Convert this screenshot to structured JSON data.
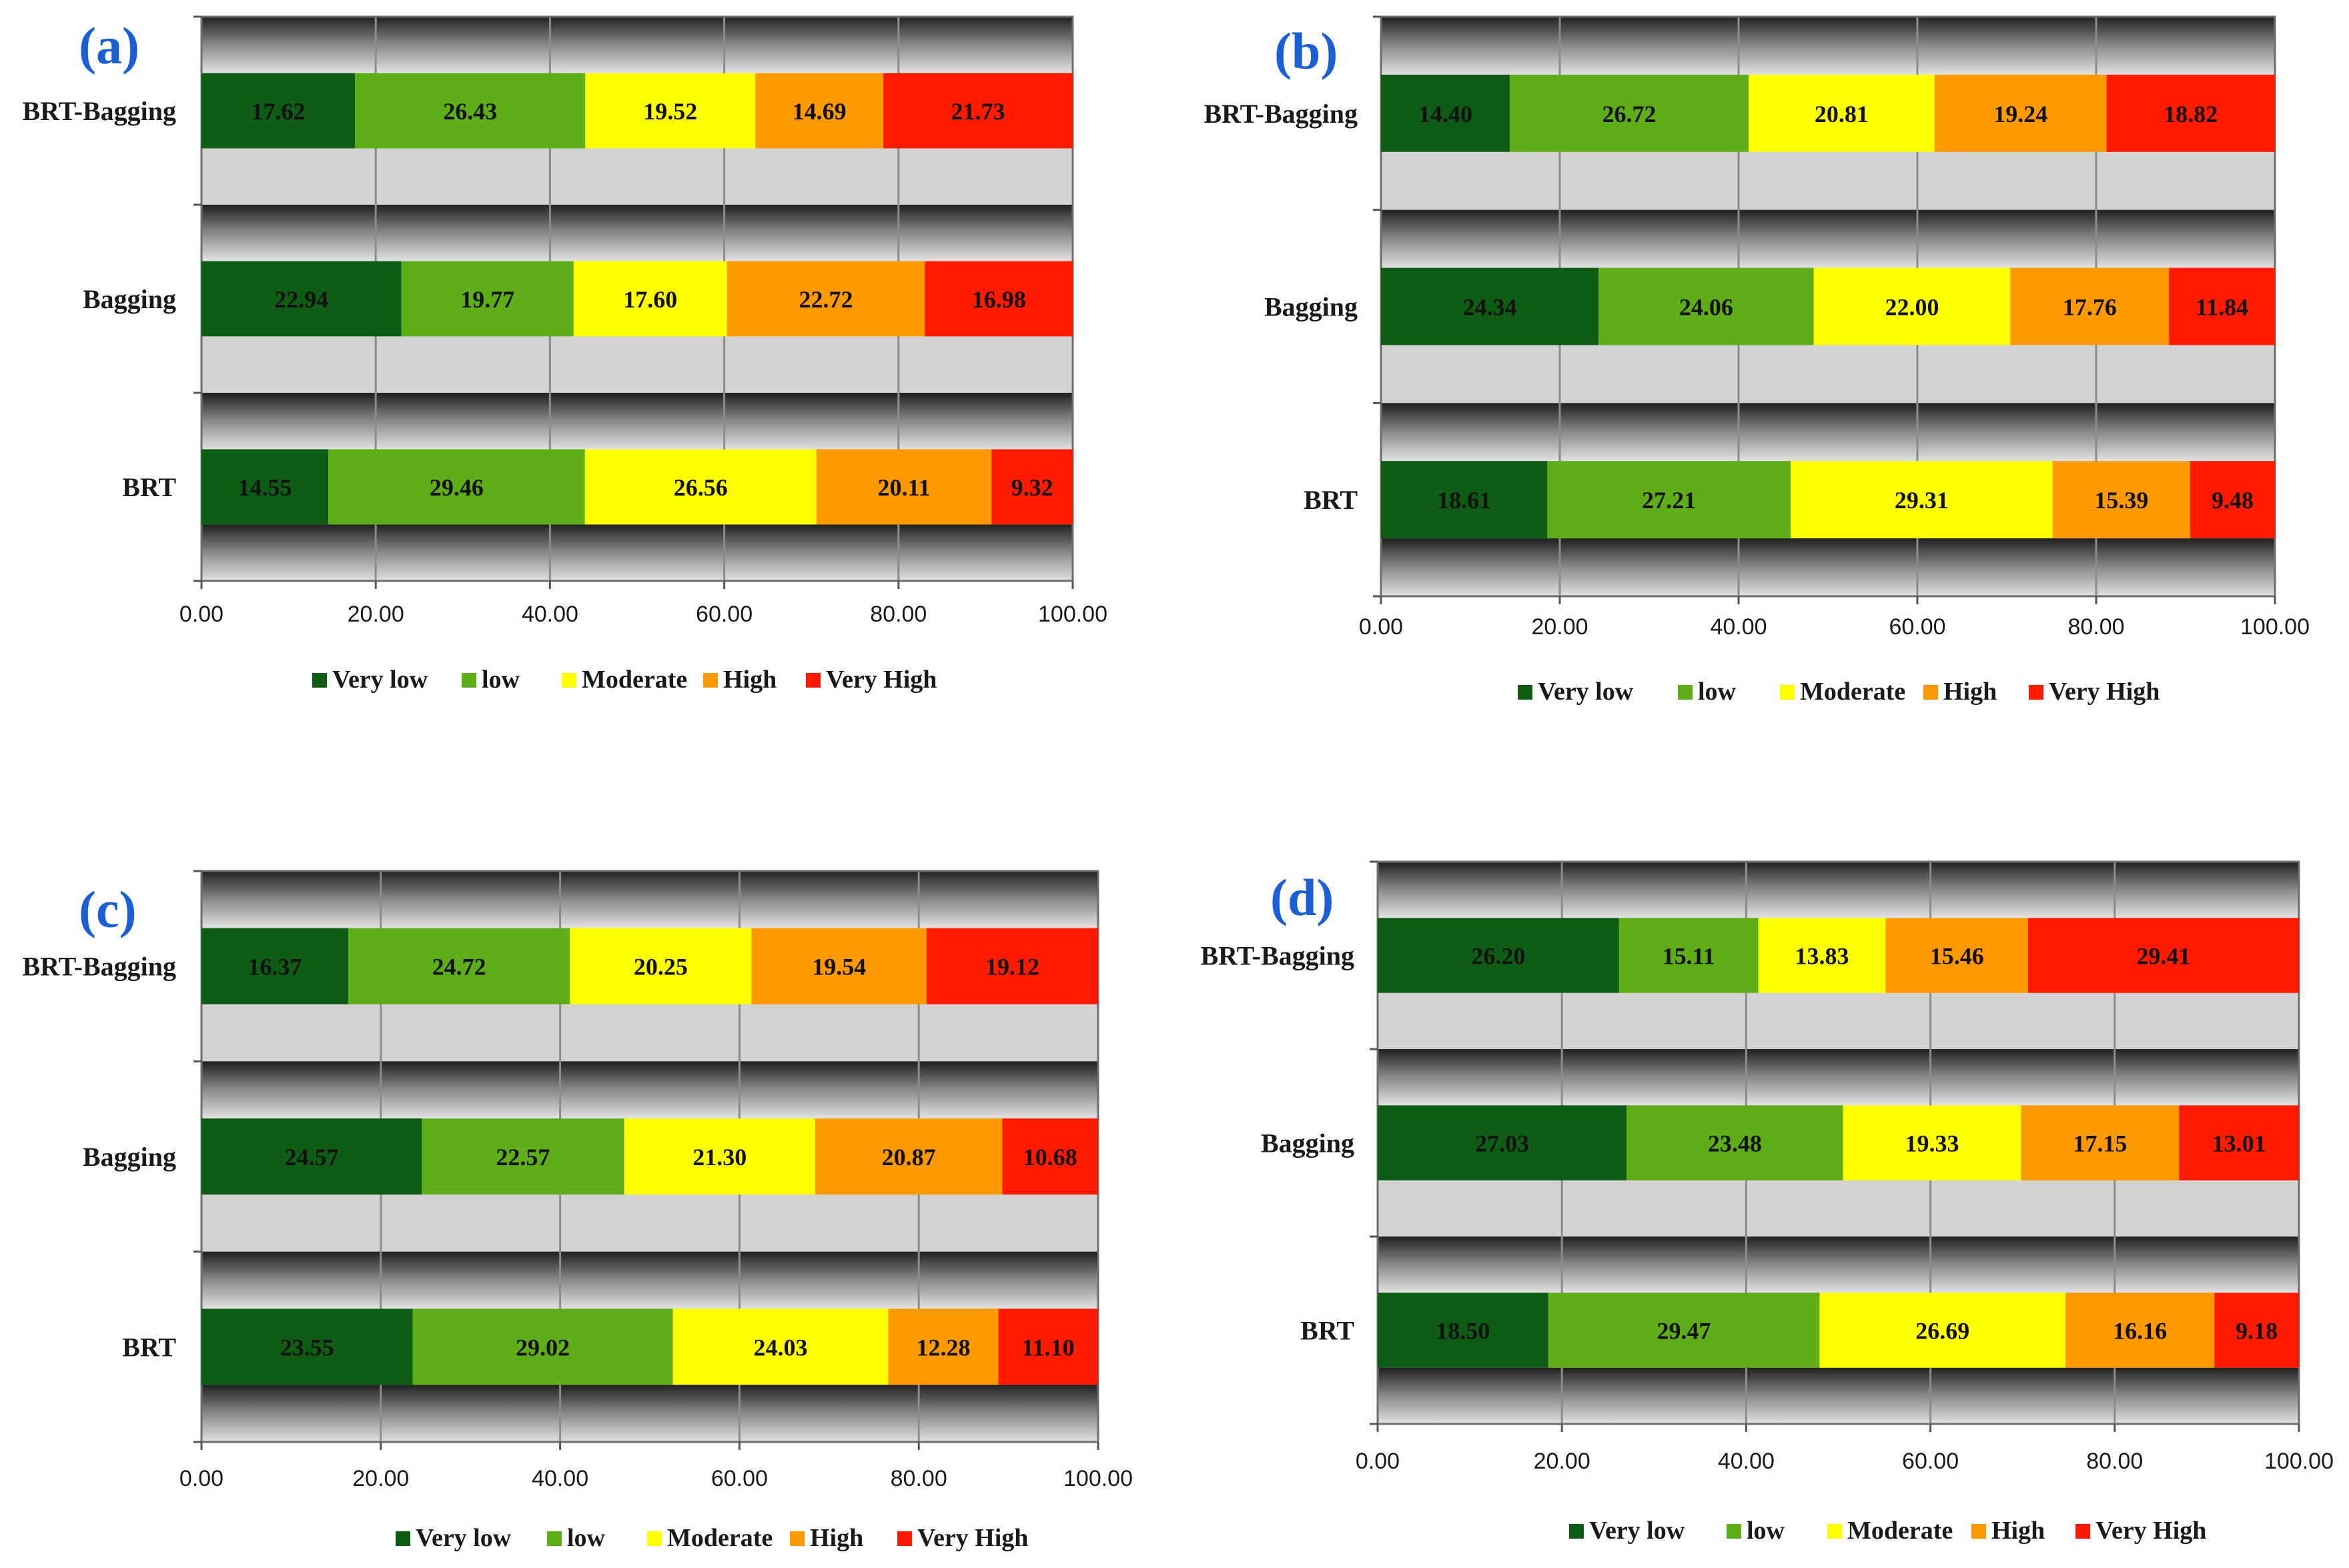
{
  "chart_data": [
    {
      "panel_label": "(a)",
      "type": "bar",
      "orientation": "horizontal",
      "stacked": true,
      "categories": [
        "BRT-Bagging",
        "Bagging",
        "BRT"
      ],
      "series": [
        {
          "name": "Very low",
          "color": "#0f5c14",
          "values": [
            17.62,
            22.94,
            14.55
          ],
          "labels": [
            "17.62",
            "22.94",
            "14.55"
          ]
        },
        {
          "name": "low",
          "color": "#5fad18",
          "values": [
            26.43,
            19.77,
            29.46
          ],
          "labels": [
            "26.43",
            "19.77",
            "29.46"
          ]
        },
        {
          "name": "Moderate",
          "color": "#ffff00",
          "values": [
            19.52,
            17.6,
            26.56
          ],
          "labels": [
            "19.52",
            "17.60",
            "26.56"
          ]
        },
        {
          "name": "High",
          "color": "#ff9900",
          "values": [
            14.69,
            22.72,
            20.11
          ],
          "labels": [
            "14.69",
            "22.72",
            "20.11"
          ]
        },
        {
          "name": "Very High",
          "color": "#ff1a00",
          "values": [
            21.73,
            16.98,
            9.32
          ],
          "labels": [
            "21.73",
            "16.98",
            "9.32"
          ]
        }
      ],
      "xlim": [
        0,
        100
      ],
      "xticks": [
        "0.00",
        "20.00",
        "40.00",
        "60.00",
        "80.00",
        "100.00"
      ],
      "xlabel": "",
      "ylabel": "",
      "grid": true,
      "legend_position": "bottom"
    },
    {
      "panel_label": "(b)",
      "type": "bar",
      "orientation": "horizontal",
      "stacked": true,
      "categories": [
        "BRT-Bagging",
        "Bagging",
        "BRT"
      ],
      "series": [
        {
          "name": "Very low",
          "color": "#0f5c14",
          "values": [
            14.4,
            24.34,
            18.61
          ],
          "labels": [
            "14.40",
            "24.34",
            "18.61"
          ]
        },
        {
          "name": "low",
          "color": "#5fad18",
          "values": [
            26.72,
            24.06,
            27.21
          ],
          "labels": [
            "26.72",
            "24.06",
            "27.21"
          ]
        },
        {
          "name": "Moderate",
          "color": "#ffff00",
          "values": [
            20.81,
            22.0,
            29.31
          ],
          "labels": [
            "20.81",
            "22.00",
            "29.31"
          ]
        },
        {
          "name": "High",
          "color": "#ff9900",
          "values": [
            19.24,
            17.76,
            15.39
          ],
          "labels": [
            "19.24",
            "17.76",
            "15.39"
          ]
        },
        {
          "name": "Very High",
          "color": "#ff1a00",
          "values": [
            18.82,
            11.84,
            9.48
          ],
          "labels": [
            "18.82",
            "11.84",
            "9.48"
          ]
        }
      ],
      "xlim": [
        0,
        100
      ],
      "xticks": [
        "0.00",
        "20.00",
        "40.00",
        "60.00",
        "80.00",
        "100.00"
      ],
      "xlabel": "",
      "ylabel": "",
      "grid": true,
      "legend_position": "bottom"
    },
    {
      "panel_label": "(c)",
      "type": "bar",
      "orientation": "horizontal",
      "stacked": true,
      "categories": [
        "BRT-Bagging",
        "Bagging",
        "BRT"
      ],
      "series": [
        {
          "name": "Very low",
          "color": "#0f5c14",
          "values": [
            16.37,
            24.57,
            23.55
          ],
          "labels": [
            "16.37",
            "24.57",
            "23.55"
          ]
        },
        {
          "name": "low",
          "color": "#5fad18",
          "values": [
            24.72,
            22.57,
            29.02
          ],
          "labels": [
            "24.72",
            "22.57",
            "29.02"
          ]
        },
        {
          "name": "Moderate",
          "color": "#ffff00",
          "values": [
            20.25,
            21.3,
            24.03
          ],
          "labels": [
            "20.25",
            "21.30",
            "24.03"
          ]
        },
        {
          "name": "High",
          "color": "#ff9900",
          "values": [
            19.54,
            20.87,
            12.28
          ],
          "labels": [
            "19.54",
            "20.87",
            "12.28"
          ]
        },
        {
          "name": "Very High",
          "color": "#ff1a00",
          "values": [
            19.12,
            10.68,
            11.1
          ],
          "labels": [
            "19.12",
            "10.68",
            "11.10"
          ]
        }
      ],
      "xlim": [
        0,
        100
      ],
      "xticks": [
        "0.00",
        "20.00",
        "40.00",
        "60.00",
        "80.00",
        "100.00"
      ],
      "xlabel": "",
      "ylabel": "",
      "grid": true,
      "legend_position": "bottom"
    },
    {
      "panel_label": "(d)",
      "type": "bar",
      "orientation": "horizontal",
      "stacked": true,
      "categories": [
        "BRT-Bagging",
        "Bagging",
        "BRT"
      ],
      "series": [
        {
          "name": "Very low",
          "color": "#0f5c14",
          "values": [
            26.2,
            27.03,
            18.5
          ],
          "labels": [
            "26.20",
            "27.03",
            "18.50"
          ]
        },
        {
          "name": "low",
          "color": "#5fad18",
          "values": [
            15.11,
            23.48,
            29.47
          ],
          "labels": [
            "15.11",
            "23.48",
            "29.47"
          ]
        },
        {
          "name": "Moderate",
          "color": "#ffff00",
          "values": [
            13.83,
            19.33,
            26.69
          ],
          "labels": [
            "13.83",
            "19.33",
            "26.69"
          ]
        },
        {
          "name": "High",
          "color": "#ff9900",
          "values": [
            15.46,
            17.15,
            16.16
          ],
          "labels": [
            "15.46",
            "17.15",
            "16.16"
          ]
        },
        {
          "name": "Very High",
          "color": "#ff1a00",
          "values": [
            29.41,
            13.01,
            9.18
          ],
          "labels": [
            "29.41",
            "13.01",
            "9.18"
          ]
        }
      ],
      "xlim": [
        0,
        100
      ],
      "xticks": [
        "0.00",
        "20.00",
        "40.00",
        "60.00",
        "80.00",
        "100.00"
      ],
      "xlabel": "",
      "ylabel": "",
      "grid": true,
      "legend_position": "bottom"
    }
  ]
}
